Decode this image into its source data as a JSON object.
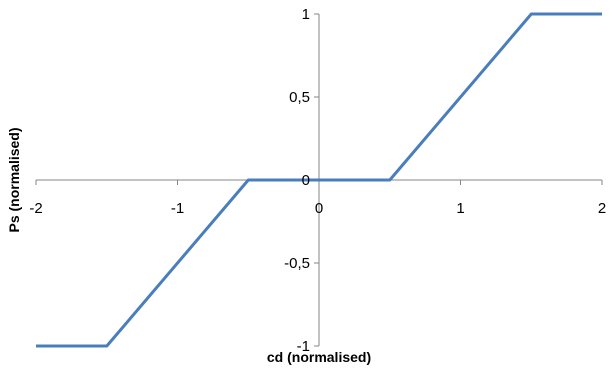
{
  "chart_data": {
    "type": "line",
    "title": "",
    "xlabel": "cd (normalised)",
    "ylabel": "Ps (normalised)",
    "xlim": [
      -2,
      2
    ],
    "ylim": [
      -1,
      1
    ],
    "x_ticks": [
      -2,
      -1,
      0,
      1,
      2
    ],
    "x_tick_labels": [
      "-2",
      "-1",
      "0",
      "1",
      "2"
    ],
    "y_ticks": [
      -1,
      -0.5,
      0,
      0.5,
      1
    ],
    "y_tick_labels": [
      "-1",
      "-0,5",
      "0",
      "0,5",
      "1"
    ],
    "grid": false,
    "legend": "none",
    "series": [
      {
        "color": "#4a7ebb",
        "x": [
          -2,
          -1.5,
          -0.5,
          0.5,
          1.5,
          2
        ],
        "y": [
          -1,
          -1,
          0,
          0,
          1,
          1
        ]
      }
    ]
  }
}
